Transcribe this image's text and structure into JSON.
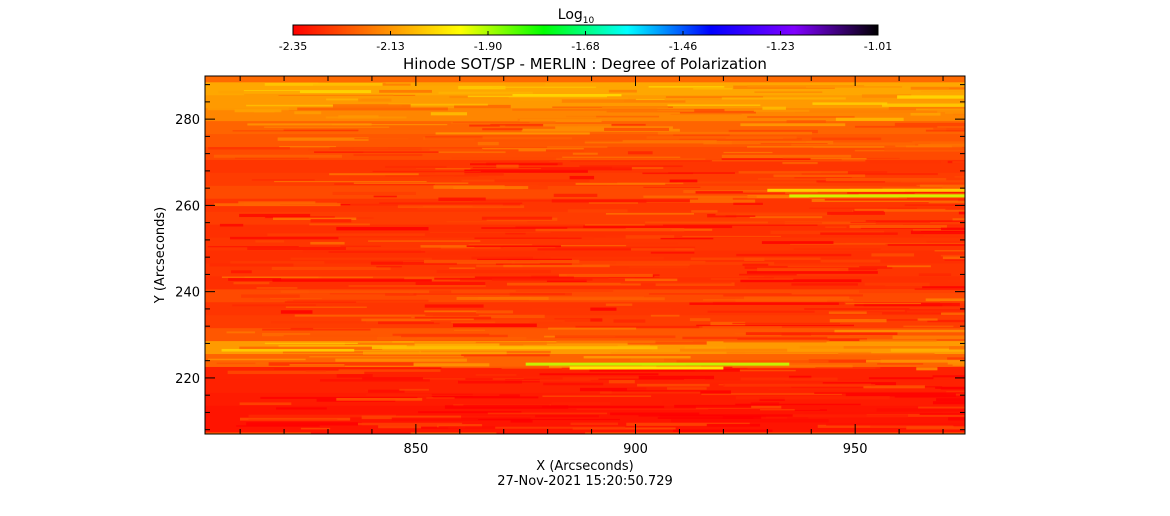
{
  "chart_data": {
    "type": "heatmap",
    "title": "Hinode SOT/SP - MERLIN : Degree of Polarization",
    "xlabel": "X (Arcseconds)",
    "ylabel": "Y (Arcseconds)",
    "timestamp": "27-Nov-2021 15:20:50.729",
    "xlim": [
      802,
      975
    ],
    "ylim": [
      207,
      290
    ],
    "x_ticks": [
      850,
      900,
      950
    ],
    "y_ticks": [
      220,
      240,
      260,
      280
    ],
    "colorbar": {
      "label": "Log",
      "label_sub": "10",
      "ticks": [
        "-2.35",
        "-2.13",
        "-1.90",
        "-1.68",
        "-1.46",
        "-1.23",
        "-1.01"
      ],
      "range": [
        -2.35,
        -1.01
      ],
      "colormap": [
        "#ff0000",
        "#ff8000",
        "#ffff00",
        "#00ff00",
        "#00ffff",
        "#0000ff",
        "#8000ff",
        "#000000"
      ]
    },
    "field_description": "Log10 degree of polarization, mostly -2.35 to -2.05 with horizontal streaks; brighter band near y=226 and green streaks near y=223 and y=262",
    "bands": [
      {
        "y": 287,
        "value": -2.1
      },
      {
        "y": 284,
        "value": -2.12
      },
      {
        "y": 281,
        "value": -2.15
      },
      {
        "y": 278,
        "value": -2.2
      },
      {
        "y": 275,
        "value": -2.22
      },
      {
        "y": 272,
        "value": -2.24
      },
      {
        "y": 269,
        "value": -2.27
      },
      {
        "y": 266,
        "value": -2.26
      },
      {
        "y": 263,
        "value": -2.24
      },
      {
        "y": 260,
        "value": -2.27
      },
      {
        "y": 257,
        "value": -2.26
      },
      {
        "y": 254,
        "value": -2.28
      },
      {
        "y": 251,
        "value": -2.27
      },
      {
        "y": 248,
        "value": -2.28
      },
      {
        "y": 245,
        "value": -2.27
      },
      {
        "y": 242,
        "value": -2.28
      },
      {
        "y": 239,
        "value": -2.24
      },
      {
        "y": 236,
        "value": -2.27
      },
      {
        "y": 233,
        "value": -2.26
      },
      {
        "y": 230,
        "value": -2.22
      },
      {
        "y": 227,
        "value": -2.12
      },
      {
        "y": 224,
        "value": -2.2
      },
      {
        "y": 221,
        "value": -2.3
      },
      {
        "y": 218,
        "value": -2.3
      },
      {
        "y": 215,
        "value": -2.31
      },
      {
        "y": 212,
        "value": -2.32
      },
      {
        "y": 209,
        "value": -2.32
      }
    ]
  }
}
